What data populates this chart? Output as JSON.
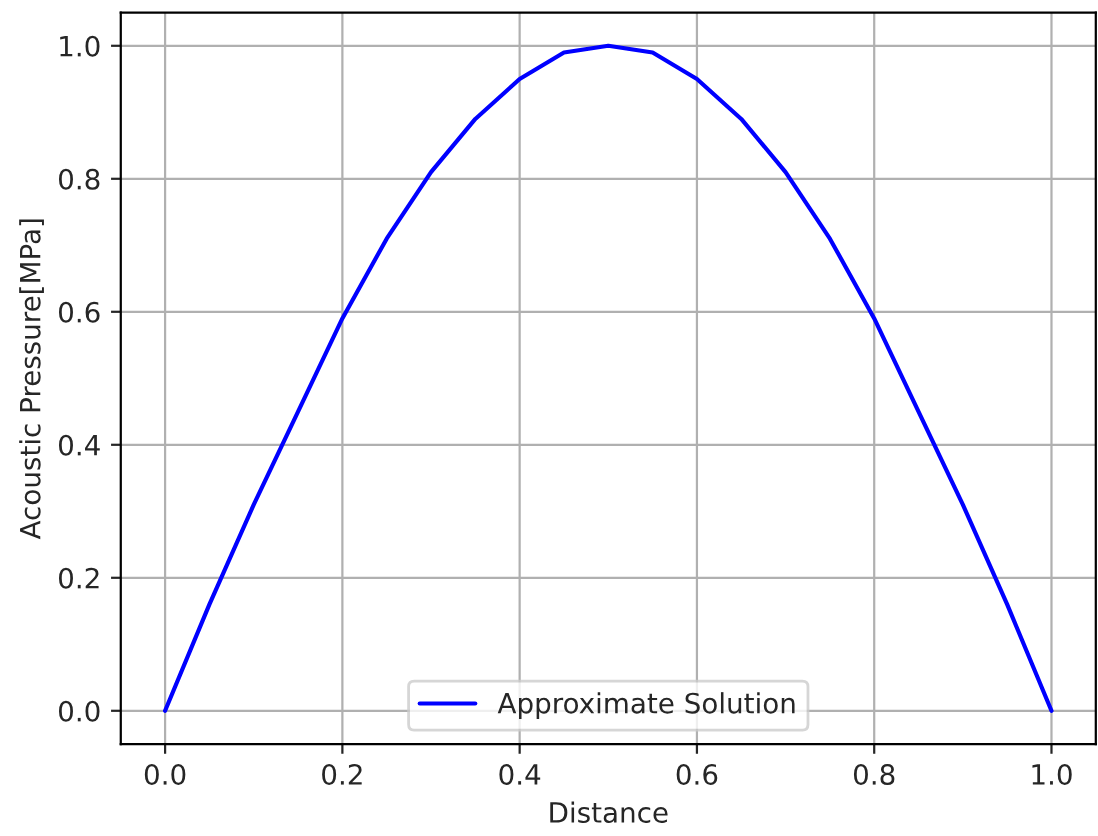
{
  "chart_data": {
    "type": "line",
    "xlabel": "Distance",
    "ylabel": "Acoustic Pressure[MPa]",
    "x": [
      0,
      0.05,
      0.1,
      0.15,
      0.2,
      0.25,
      0.3,
      0.35,
      0.4,
      0.45,
      0.5,
      0.55,
      0.6,
      0.65,
      0.7,
      0.75,
      0.8,
      0.85,
      0.9,
      0.95,
      1.0
    ],
    "series": [
      {
        "name": "Approximate Solution",
        "color": "#0000ff",
        "values": [
          0,
          0.16,
          0.31,
          0.45,
          0.59,
          0.71,
          0.81,
          0.89,
          0.95,
          0.99,
          1.0,
          0.99,
          0.95,
          0.89,
          0.81,
          0.71,
          0.59,
          0.45,
          0.31,
          0.16,
          0
        ]
      }
    ],
    "xlim": [
      -0.05,
      1.05
    ],
    "ylim": [
      -0.05,
      1.05
    ],
    "xticks": [
      {
        "value": 0,
        "label": "0.0"
      },
      {
        "value": 0.2,
        "label": "0.2"
      },
      {
        "value": 0.4,
        "label": "0.4"
      },
      {
        "value": 0.6,
        "label": "0.6"
      },
      {
        "value": 0.8,
        "label": "0.8"
      },
      {
        "value": 1.0,
        "label": "1.0"
      }
    ],
    "yticks": [
      {
        "value": 0,
        "label": "0.0"
      },
      {
        "value": 0.2,
        "label": "0.2"
      },
      {
        "value": 0.4,
        "label": "0.4"
      },
      {
        "value": 0.6,
        "label": "0.6"
      },
      {
        "value": 0.8,
        "label": "0.8"
      },
      {
        "value": 1.0,
        "label": "1.0"
      }
    ],
    "grid": true,
    "legend": "bottom",
    "marker": "none",
    "line_style": "solid"
  }
}
